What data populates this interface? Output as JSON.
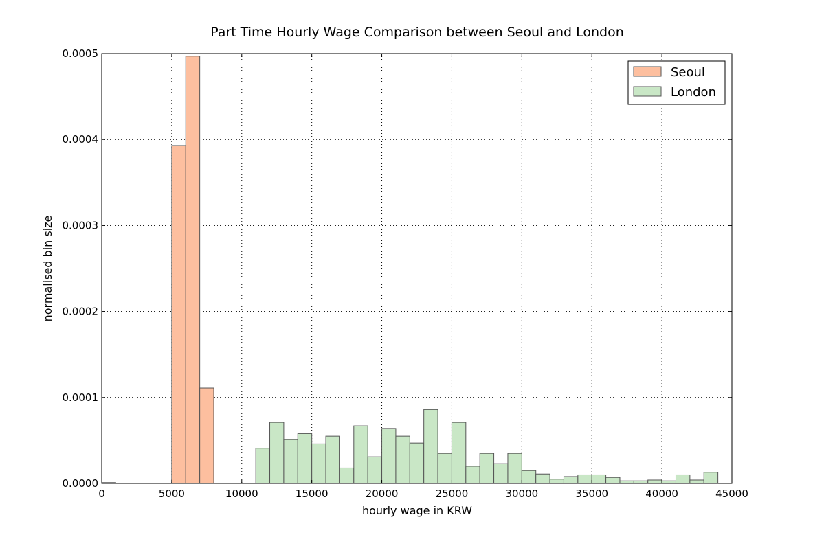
{
  "chart_data": {
    "type": "bar",
    "subtype": "histogram",
    "title": "Part Time Hourly Wage Comparison between Seoul and London",
    "xlabel": "hourly wage in KRW",
    "ylabel": "normalised bin size",
    "xlim": [
      0,
      45000
    ],
    "ylim": [
      0,
      0.0005
    ],
    "xticks": [
      0,
      5000,
      10000,
      15000,
      20000,
      25000,
      30000,
      35000,
      40000,
      45000
    ],
    "xtick_labels": [
      "0",
      "5000",
      "10000",
      "15000",
      "20000",
      "25000",
      "30000",
      "35000",
      "40000",
      "45000"
    ],
    "yticks": [
      0,
      0.0001,
      0.0002,
      0.0003,
      0.0004,
      0.0005
    ],
    "ytick_labels": [
      "0.0000",
      "0.0001",
      "0.0002",
      "0.0003",
      "0.0004",
      "0.0005"
    ],
    "grid": true,
    "legend_position": "top-right",
    "series": [
      {
        "name": "Seoul",
        "color": "#fdbf9f",
        "bins": [
          {
            "x0": 0,
            "x1": 1000,
            "value": 1e-06
          },
          {
            "x0": 5000,
            "x1": 6000,
            "value": 0.000393
          },
          {
            "x0": 6000,
            "x1": 7000,
            "value": 0.000497
          },
          {
            "x0": 7000,
            "x1": 8000,
            "value": 0.000111
          }
        ]
      },
      {
        "name": "London",
        "color": "#c9e7c6",
        "bins": [
          {
            "x0": 11000,
            "x1": 12000,
            "value": 4.1e-05
          },
          {
            "x0": 12000,
            "x1": 13000,
            "value": 7.1e-05
          },
          {
            "x0": 13000,
            "x1": 14000,
            "value": 5.1e-05
          },
          {
            "x0": 14000,
            "x1": 15000,
            "value": 5.8e-05
          },
          {
            "x0": 15000,
            "x1": 16000,
            "value": 4.6e-05
          },
          {
            "x0": 16000,
            "x1": 17000,
            "value": 5.5e-05
          },
          {
            "x0": 17000,
            "x1": 18000,
            "value": 1.8e-05
          },
          {
            "x0": 18000,
            "x1": 19000,
            "value": 6.7e-05
          },
          {
            "x0": 19000,
            "x1": 20000,
            "value": 3.1e-05
          },
          {
            "x0": 20000,
            "x1": 21000,
            "value": 6.4e-05
          },
          {
            "x0": 21000,
            "x1": 22000,
            "value": 5.5e-05
          },
          {
            "x0": 22000,
            "x1": 23000,
            "value": 4.7e-05
          },
          {
            "x0": 23000,
            "x1": 24000,
            "value": 8.6e-05
          },
          {
            "x0": 24000,
            "x1": 25000,
            "value": 3.5e-05
          },
          {
            "x0": 25000,
            "x1": 26000,
            "value": 7.1e-05
          },
          {
            "x0": 26000,
            "x1": 27000,
            "value": 2e-05
          },
          {
            "x0": 27000,
            "x1": 28000,
            "value": 3.5e-05
          },
          {
            "x0": 28000,
            "x1": 29000,
            "value": 2.3e-05
          },
          {
            "x0": 29000,
            "x1": 30000,
            "value": 3.5e-05
          },
          {
            "x0": 30000,
            "x1": 31000,
            "value": 1.5e-05
          },
          {
            "x0": 31000,
            "x1": 32000,
            "value": 1.1e-05
          },
          {
            "x0": 32000,
            "x1": 33000,
            "value": 5e-06
          },
          {
            "x0": 33000,
            "x1": 34000,
            "value": 8e-06
          },
          {
            "x0": 34000,
            "x1": 35000,
            "value": 1e-05
          },
          {
            "x0": 35000,
            "x1": 36000,
            "value": 1e-05
          },
          {
            "x0": 36000,
            "x1": 37000,
            "value": 7e-06
          },
          {
            "x0": 37000,
            "x1": 38000,
            "value": 3e-06
          },
          {
            "x0": 38000,
            "x1": 39000,
            "value": 3e-06
          },
          {
            "x0": 39000,
            "x1": 40000,
            "value": 4e-06
          },
          {
            "x0": 40000,
            "x1": 41000,
            "value": 3e-06
          },
          {
            "x0": 41000,
            "x1": 42000,
            "value": 1e-05
          },
          {
            "x0": 42000,
            "x1": 43000,
            "value": 4e-06
          },
          {
            "x0": 43000,
            "x1": 44000,
            "value": 1.3e-05
          }
        ]
      }
    ]
  }
}
